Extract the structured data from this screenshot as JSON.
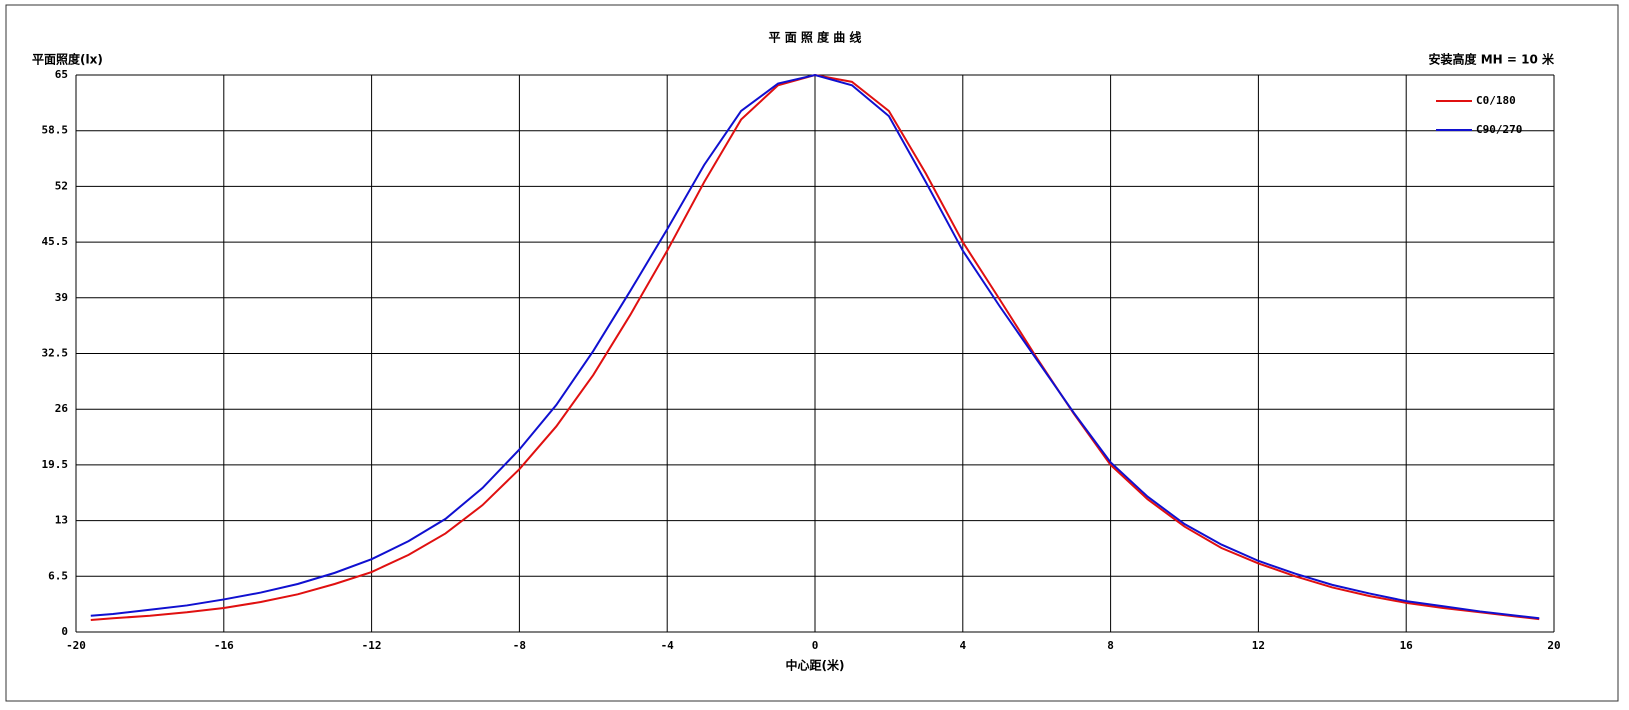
{
  "chart_data": {
    "type": "line",
    "title": "平 面 照 度 曲 线",
    "y_label": "平面照度(lx)",
    "x_label": "中心距(米)",
    "annotation": "安装高度 MH = 10 米",
    "x": [
      -19.6,
      -19,
      -18,
      -17,
      -16,
      -15,
      -14,
      -13,
      -12,
      -11,
      -10,
      -9,
      -8,
      -7,
      -6,
      -5,
      -4,
      -3,
      -2,
      -1,
      0,
      1,
      2,
      3,
      4,
      5,
      6,
      7,
      8,
      9,
      10,
      11,
      12,
      13,
      14,
      15,
      16,
      17,
      18,
      19,
      19.6
    ],
    "series": [
      {
        "name": "C0/180",
        "color": "#e01010",
        "values": [
          1.4,
          1.6,
          1.9,
          2.3,
          2.8,
          3.5,
          4.4,
          5.6,
          7,
          9,
          11.5,
          14.8,
          19,
          24,
          30,
          37,
          44.5,
          52.5,
          59.8,
          63.8,
          65,
          64.2,
          60.8,
          53.5,
          45.5,
          38.8,
          32,
          25.5,
          19.5,
          15.5,
          12.3,
          9.8,
          8,
          6.5,
          5.2,
          4.2,
          3.4,
          2.8,
          2.3,
          1.8,
          1.5
        ]
      },
      {
        "name": "C90/270",
        "color": "#1010d0",
        "values": [
          1.9,
          2.1,
          2.6,
          3.1,
          3.8,
          4.6,
          5.6,
          6.9,
          8.5,
          10.6,
          13.2,
          16.8,
          21.3,
          26.5,
          32.8,
          39.8,
          47,
          54.5,
          60.8,
          64,
          65,
          63.8,
          60.2,
          52.5,
          44.5,
          38,
          31.8,
          25.6,
          19.8,
          15.8,
          12.6,
          10.2,
          8.3,
          6.8,
          5.5,
          4.5,
          3.6,
          3,
          2.4,
          1.9,
          1.6
        ]
      }
    ],
    "xlim": [
      -20,
      20
    ],
    "xticks": [
      -20,
      -16,
      -12,
      -8,
      -4,
      0,
      4,
      8,
      12,
      16,
      20
    ],
    "ylim": [
      0,
      65
    ],
    "yticks": [
      0,
      6.5,
      13,
      19.5,
      26,
      32.5,
      39,
      45.5,
      52,
      58.5,
      65
    ],
    "grid": true
  }
}
